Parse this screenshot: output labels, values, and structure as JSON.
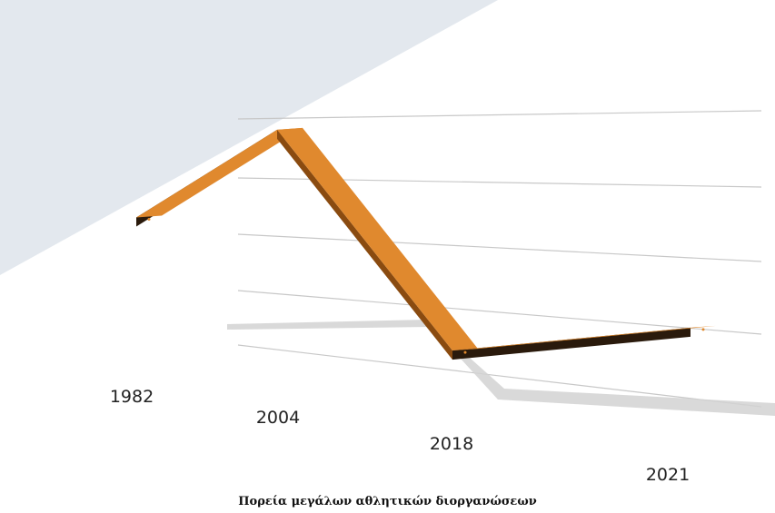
{
  "caption": "Πορεία μεγάλων αθλητικών διοργανώσεων",
  "colors": {
    "background": "#ffffff",
    "backdrop_panel": "#e3e8ee",
    "ribbon_top": "#e0892e",
    "ribbon_side": "#8a4b10",
    "ribbon_dark": "#2a1a0c",
    "shadow": "#d2d2d2",
    "grid": "#c8c8c8"
  },
  "chart_data": {
    "type": "line",
    "style": "3d-ribbon",
    "categories": [
      "1982",
      "2004",
      "2018",
      "2021"
    ],
    "values": [
      3,
      5,
      0.5,
      1.2
    ],
    "ylim": [
      0,
      5.5
    ],
    "grid": true,
    "legend": "none",
    "title": "",
    "xlabel": "",
    "ylabel": ""
  }
}
